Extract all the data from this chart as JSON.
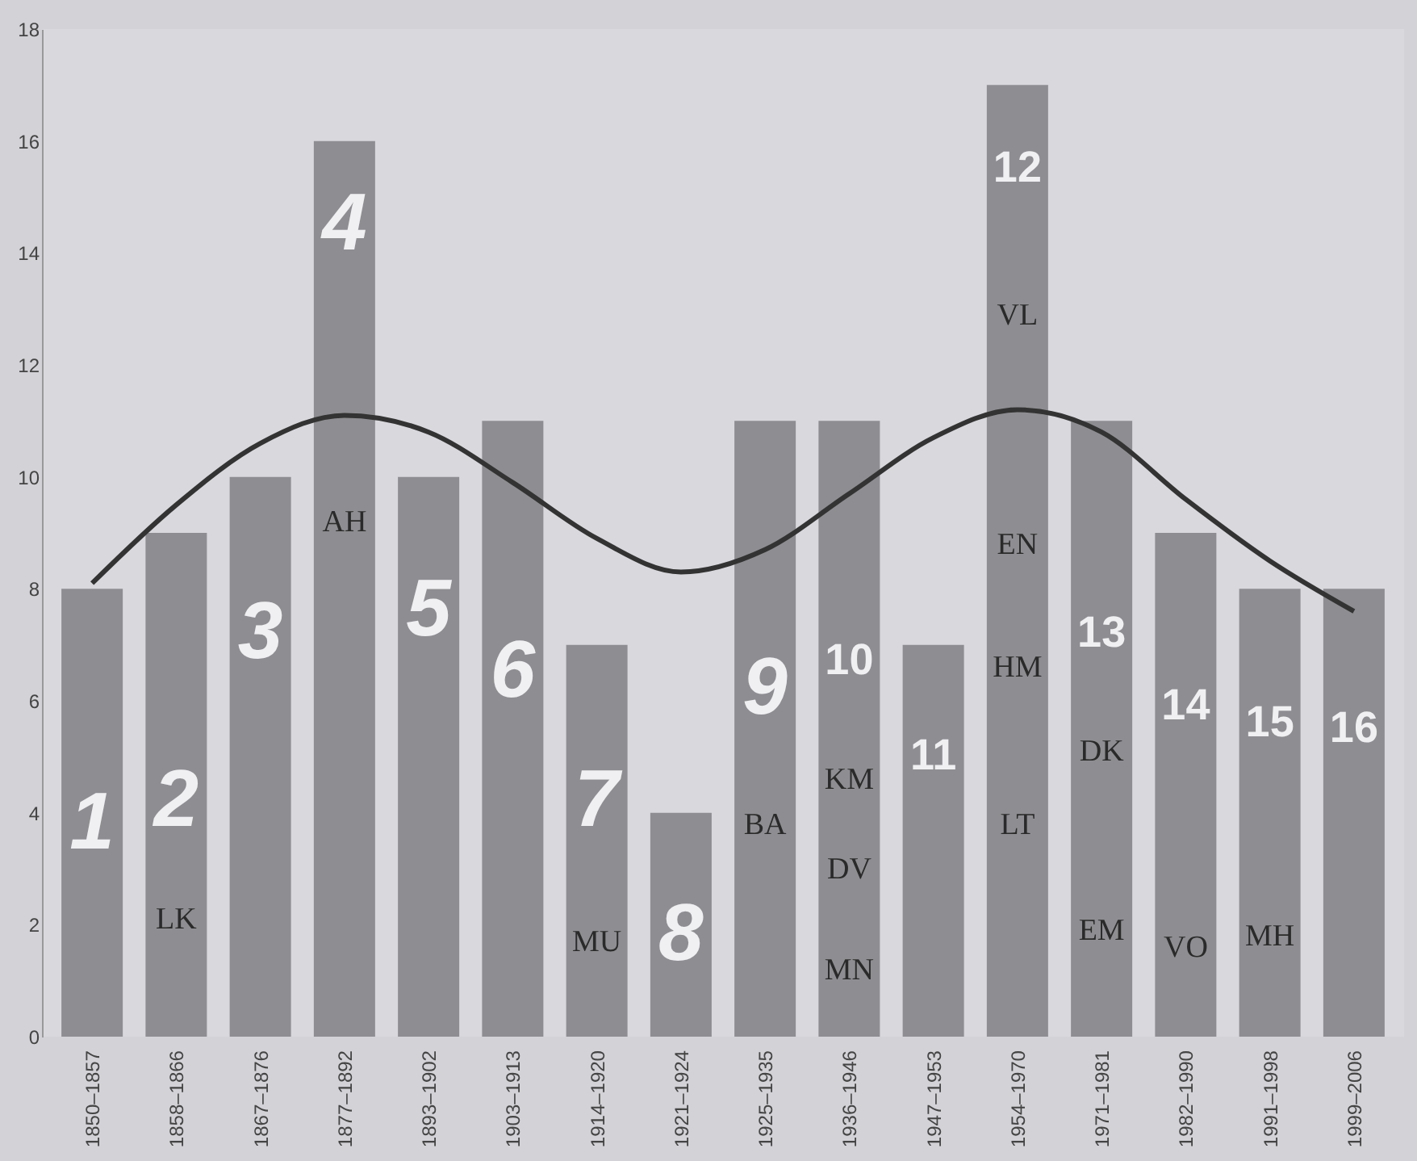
{
  "chart_data": {
    "type": "bar",
    "categories": [
      "1850–1857",
      "1858–1866",
      "1867–1876",
      "1877–1892",
      "1893–1902",
      "1903–1913",
      "1914–1920",
      "1921–1924",
      "1925–1935",
      "1936–1946",
      "1947–1953",
      "1954–1970",
      "1971–1981",
      "1982–1990",
      "1991–1998",
      "1999–2006"
    ],
    "series": [
      {
        "color": "#8e8e92",
        "values": [
          8,
          9,
          10,
          16,
          10,
          11,
          7,
          4,
          11,
          11,
          7,
          17,
          11,
          9,
          8,
          8
        ]
      },
      {
        "type": "line",
        "color": "#333333",
        "values": [
          8.1,
          9.5,
          10.6,
          11.1,
          10.8,
          9.9,
          8.9,
          8.3,
          8.7,
          9.7,
          10.7,
          11.2,
          10.8,
          9.6,
          8.5,
          7.6
        ]
      }
    ],
    "ylim": [
      0,
      18
    ],
    "yticks": [
      0,
      2,
      4,
      6,
      8,
      10,
      12,
      14,
      16,
      18
    ],
    "grid": false,
    "annotations": [
      "1",
      "2",
      "3",
      "4",
      "5",
      "6",
      "7",
      "8",
      "9",
      "10",
      "11",
      "12",
      "13",
      "14",
      "15",
      "16",
      "LK",
      "AH",
      "MU",
      "BA",
      "KM",
      "DV",
      "MN",
      "VL",
      "EN",
      "HM",
      "LT",
      "DK",
      "EM",
      "VO",
      "MH"
    ]
  }
}
